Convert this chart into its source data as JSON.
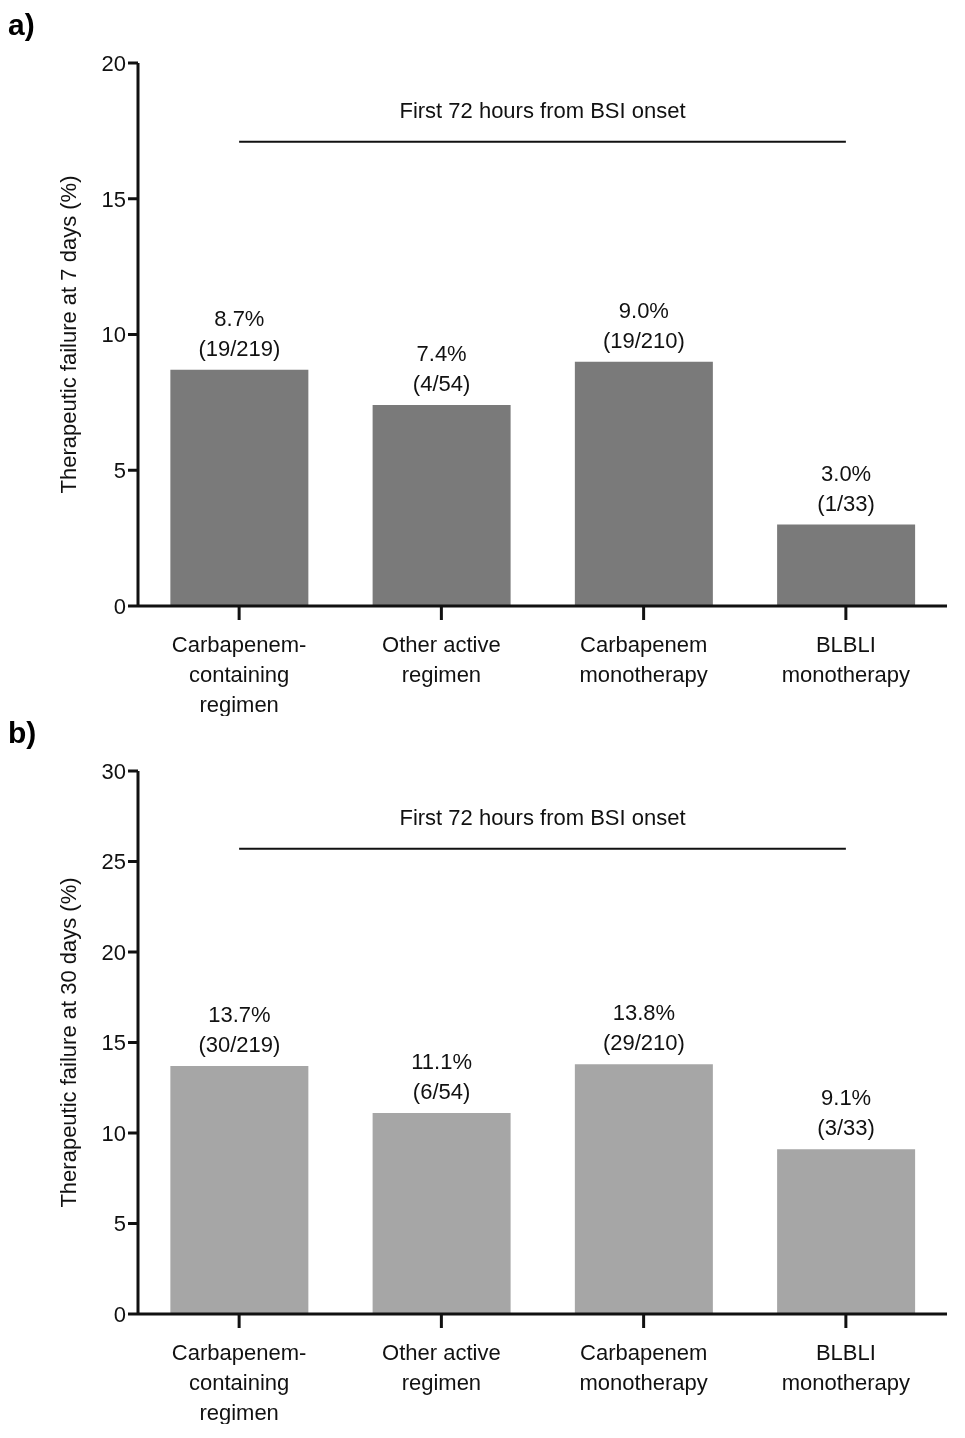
{
  "chart_data": [
    {
      "type": "bar",
      "title": "a)",
      "ylabel": "Therapeutic failure at 7 days (%)",
      "categories": [
        "Carbapenem-\ncontaining\nregimen",
        "Other active\nregimen",
        "Carbapenem\nmonotherapy",
        "BLBLI\nmonotherapy"
      ],
      "values": [
        8.7,
        7.4,
        9.0,
        3.0
      ],
      "color": "#7a7a7a",
      "value_labels": [
        "8.7%\n(19/219)",
        "7.4%\n(4/54)",
        "9.0%\n(19/210)",
        "3.0%\n(1/33)"
      ],
      "ref_lines": [
        {
          "axis": "y",
          "value": 17.1,
          "label": "First 72 hours from BSI onset",
          "color": "#111111"
        }
      ],
      "ylim": [
        0,
        20
      ],
      "yticks": [
        0,
        5,
        10,
        15,
        20
      ],
      "grid": false,
      "legend": false
    },
    {
      "type": "bar",
      "title": "b)",
      "ylabel": "Therapeutic failure at 30 days (%)",
      "categories": [
        "Carbapenem-\ncontaining\nregimen",
        "Other active\nregimen",
        "Carbapenem\nmonotherapy",
        "BLBLI\nmonotherapy"
      ],
      "values": [
        13.7,
        11.1,
        13.8,
        9.1
      ],
      "color": "#a6a6a6",
      "value_labels": [
        "13.7%\n(30/219)",
        "11.1%\n(6/54)",
        "13.8%\n(29/210)",
        "9.1%\n(3/33)"
      ],
      "ref_lines": [
        {
          "axis": "y",
          "value": 25.7,
          "label": "First 72 hours from BSI onset",
          "color": "#111111"
        }
      ],
      "ylim": [
        0,
        30
      ],
      "yticks": [
        0,
        5,
        10,
        15,
        20,
        25,
        30
      ],
      "grid": false,
      "legend": false
    }
  ]
}
